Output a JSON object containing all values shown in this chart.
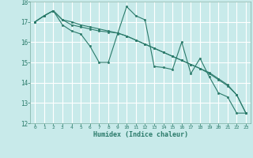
{
  "background_color": "#c8eaea",
  "grid_color": "#ffffff",
  "line_color": "#2a7a6a",
  "marker_color": "#2a7a6a",
  "xlabel": "Humidex (Indice chaleur)",
  "ylim": [
    12,
    18
  ],
  "xlim": [
    -0.5,
    23.5
  ],
  "yticks": [
    12,
    13,
    14,
    15,
    16,
    17,
    18
  ],
  "xticks": [
    0,
    1,
    2,
    3,
    4,
    5,
    6,
    7,
    8,
    9,
    10,
    11,
    12,
    13,
    14,
    15,
    16,
    17,
    18,
    19,
    20,
    21,
    22,
    23
  ],
  "series": [
    [
      17.0,
      17.3,
      17.55,
      16.85,
      16.55,
      16.4,
      15.8,
      15.0,
      15.0,
      16.4,
      17.75,
      17.3,
      17.1,
      14.8,
      14.75,
      14.65,
      16.0,
      14.45,
      15.2,
      14.3,
      13.5,
      13.3,
      12.5,
      12.5
    ],
    [
      17.0,
      17.3,
      17.55,
      17.1,
      17.0,
      16.85,
      16.75,
      16.65,
      16.55,
      16.45,
      16.3,
      16.1,
      15.9,
      15.7,
      15.5,
      15.3,
      15.1,
      14.9,
      14.7,
      14.45,
      14.15,
      13.85,
      13.4,
      12.5
    ],
    [
      17.0,
      17.3,
      17.55,
      17.1,
      16.85,
      16.75,
      16.65,
      16.55,
      16.5,
      16.45,
      16.3,
      16.1,
      15.9,
      15.7,
      15.5,
      15.3,
      15.1,
      14.9,
      14.7,
      14.5,
      14.2,
      13.9,
      13.4,
      12.5
    ]
  ]
}
